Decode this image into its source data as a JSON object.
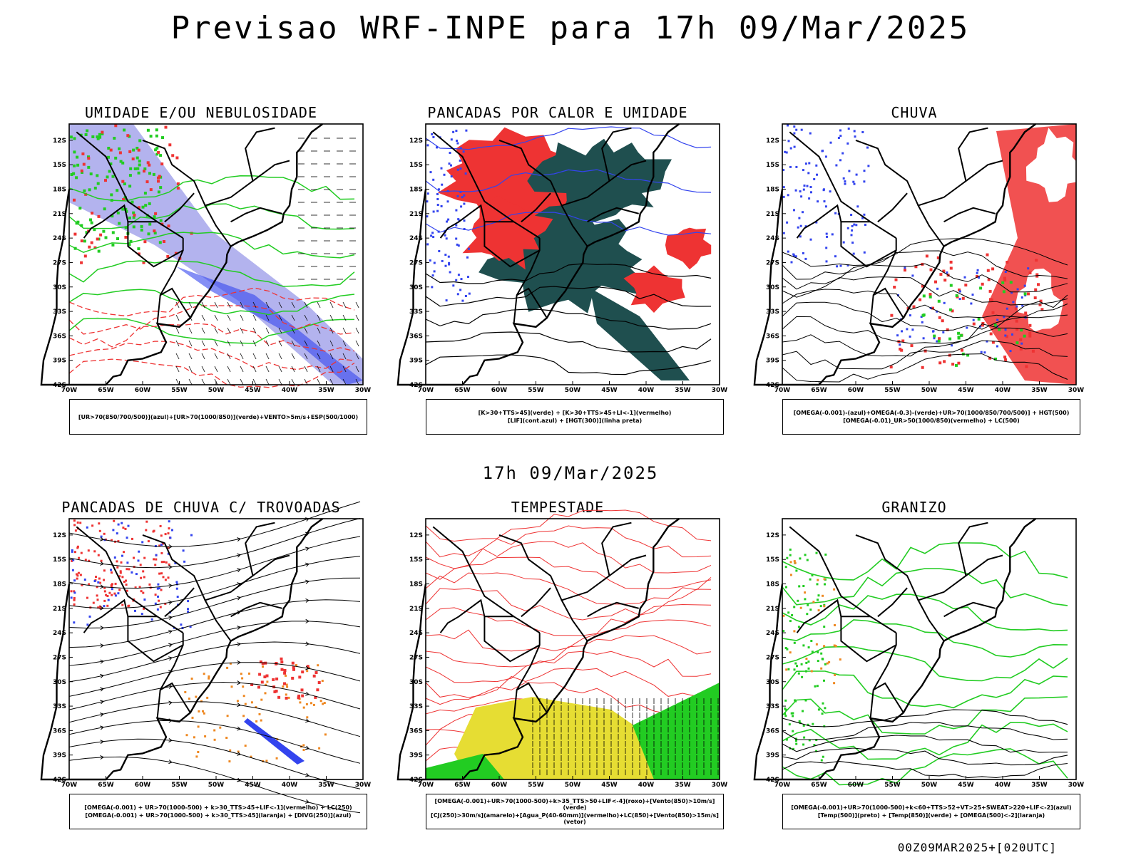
{
  "header": {
    "title": "Previsao WRF-INPE  para 17h 09/Mar/2025"
  },
  "middle": {
    "title": "17h 09/Mar/2025"
  },
  "footer": {
    "run_label": "00Z09MAR2025+[020UTC]"
  },
  "axes": {
    "lat_ticks": [
      "12S",
      "15S",
      "18S",
      "21S",
      "24S",
      "27S",
      "30S",
      "33S",
      "36S",
      "39S",
      "42S"
    ],
    "lon_ticks": [
      "70W",
      "65W",
      "60W",
      "55W",
      "50W",
      "45W",
      "40W",
      "35W",
      "30W"
    ]
  },
  "colors": {
    "red": "#ee3333",
    "blue": "#3344ee",
    "green": "#22cc22",
    "darkteal": "#1f4f4f",
    "lavender": "#9a9ae8",
    "orange": "#ee8822",
    "yellow": "#e6dd33"
  },
  "panels": [
    {
      "id": "umidade",
      "title": "UMIDADE E/OU NEBULOSIDADE",
      "legend": [
        "[UR>70(850/700/500)](azul)+[UR>70(1000/850)](verde)+VENTO>5m/s+ESP(500/1000)"
      ]
    },
    {
      "id": "pancadas-calor",
      "title": "PANCADAS POR CALOR E UMIDADE",
      "legend": [
        "[K>30+TTS>45](verde) + [K>30+TTS>45+LI<-1](vermelho)",
        "[LIF](cont.azul) + [HGT(300)](linha preta)"
      ]
    },
    {
      "id": "chuva",
      "title": "CHUVA",
      "legend": [
        "[OMEGA(-0.001)-(azul)+OMEGA(-0.3)-(verde)+UR>70(1000/850/700/500)] + HGT(500)",
        "[OMEGA(-0.01)_UR>50(1000/850)(vermelho) + LC(500)"
      ]
    },
    {
      "id": "pancadas-trovoadas",
      "title": "PANCADAS DE CHUVA C/ TROVOADAS",
      "legend": [
        "[OMEGA(-0.001) + UR>70(1000-500) + k>30_TTS>45+LIF<-1](vermelho) + LC(250)",
        "[OMEGA(-0.001) + UR>70(1000-500) + k>30_TTS>45](laranja) + [DIVG(250)](azul)"
      ]
    },
    {
      "id": "tempestade",
      "title": "TEMPESTADE",
      "legend": [
        "[OMEGA(-0.001)+UR>70(1000-500)+k>35_TTS>50+LIF<-4](roxo)+[Vento(850)>10m/s](verde)",
        "[CJ(250)>30m/s](amarelo)+[Agua_P(40-60mm)](vermelho)+LC(850)+[Vento(850)>15m/s](vetor)"
      ]
    },
    {
      "id": "granizo",
      "title": "GRANIZO",
      "legend": [
        "[OMEGA(-0.001)+UR>70(1000-500)+k<60+TTS>52+VT>25+SWEAT>220+LIF<-2](azul)",
        "[Temp(500)](preto) + [Temp(850)](verde) + [OMEGA(500)<-2](laranja)"
      ]
    }
  ]
}
